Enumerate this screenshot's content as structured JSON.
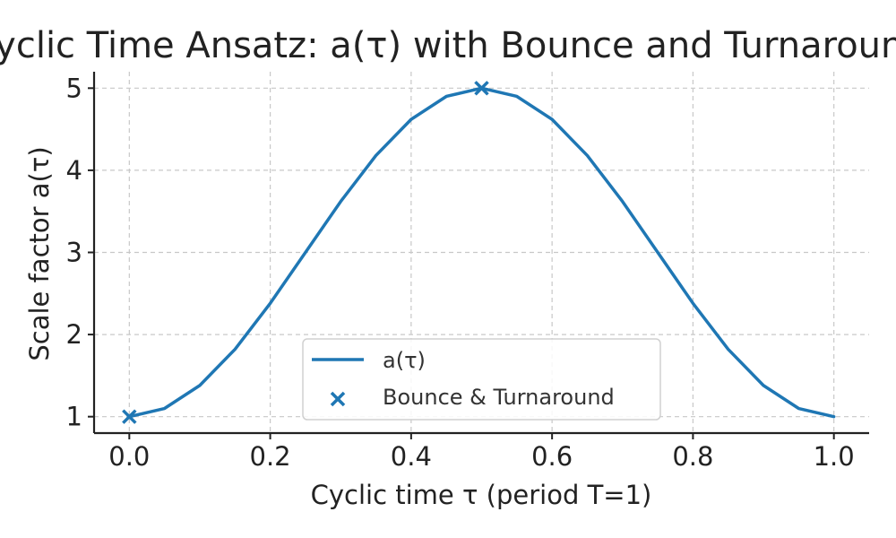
{
  "chart_data": {
    "type": "line",
    "title": "Cyclic Time Ansatz: a(τ) with Bounce and Turnaround",
    "xlabel": "Cyclic time τ (period T=1)",
    "ylabel": "Scale factor a(τ)",
    "xlim": [
      -0.05,
      1.05
    ],
    "ylim": [
      0.8,
      5.2
    ],
    "xticks": [
      0.0,
      0.2,
      0.4,
      0.6,
      0.8,
      1.0
    ],
    "xtick_labels": [
      "0.0",
      "0.2",
      "0.4",
      "0.6",
      "0.8",
      "1.0"
    ],
    "yticks": [
      1,
      2,
      3,
      4,
      5
    ],
    "ytick_labels": [
      "1",
      "2",
      "3",
      "4",
      "5"
    ],
    "grid": true,
    "legend_position": "lower-center",
    "series": [
      {
        "name": "a(τ)",
        "kind": "line",
        "color": "#1f77b4",
        "x": [
          0.0,
          0.05,
          0.1,
          0.15,
          0.2,
          0.25,
          0.3,
          0.35,
          0.4,
          0.45,
          0.5,
          0.55,
          0.6,
          0.65,
          0.7,
          0.75,
          0.8,
          0.85,
          0.9,
          0.95,
          1.0
        ],
        "y": [
          1.0,
          1.1,
          1.38,
          1.82,
          2.38,
          3.0,
          3.62,
          4.18,
          4.62,
          4.9,
          5.0,
          4.9,
          4.62,
          4.18,
          3.62,
          3.0,
          2.38,
          1.82,
          1.38,
          1.1,
          1.0
        ]
      },
      {
        "name": "Bounce & Turnaround",
        "kind": "scatter",
        "marker": "x",
        "color": "#1f77b4",
        "x": [
          0.0,
          0.5
        ],
        "y": [
          1.0,
          5.0
        ]
      }
    ]
  }
}
